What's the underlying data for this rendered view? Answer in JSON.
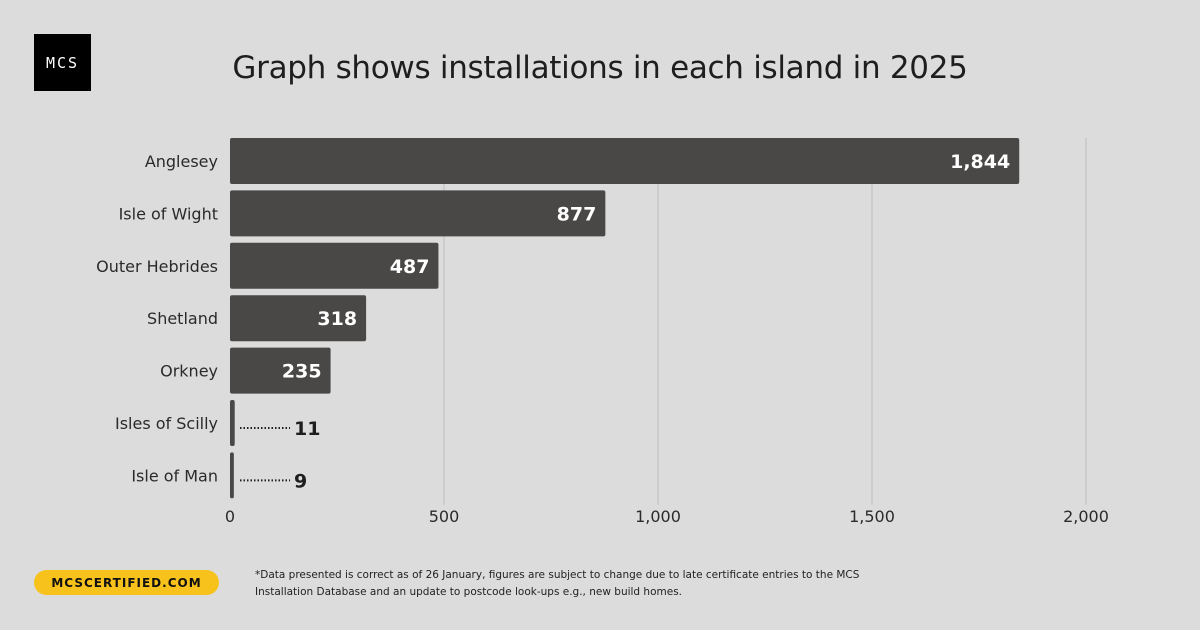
{
  "brand": {
    "logo_text": "MCS",
    "url": "MCSCERTIFIED.COM"
  },
  "footnote": "*Data presented is correct as of 26 January, figures are subject to change due to late certificate entries to the MCS Installation Database and an update to postcode look-ups e.g., new build homes.",
  "colors": {
    "background": "#dcdcdc",
    "bar": "#4a4846",
    "accent": "#f7c21b"
  },
  "chart_data": {
    "type": "bar",
    "orientation": "horizontal",
    "title": "Graph shows installations in each island in 2025",
    "categories": [
      "Anglesey",
      "Isle of Wight",
      "Outer Hebrides",
      "Shetland",
      "Orkney",
      "Isles of Scilly",
      "Isle of Man"
    ],
    "values": [
      1844,
      877,
      487,
      318,
      235,
      11,
      9
    ],
    "value_labels": [
      "1,844",
      "877",
      "487",
      "318",
      "235",
      "11",
      "9"
    ],
    "xlim": [
      0,
      2000
    ],
    "xticks": [
      0,
      500,
      1000,
      1500,
      2000
    ],
    "xtick_labels": [
      "0",
      "500",
      "1,000",
      "1,500",
      "2,000"
    ],
    "xlabel": "",
    "ylabel": "",
    "grid": true
  }
}
